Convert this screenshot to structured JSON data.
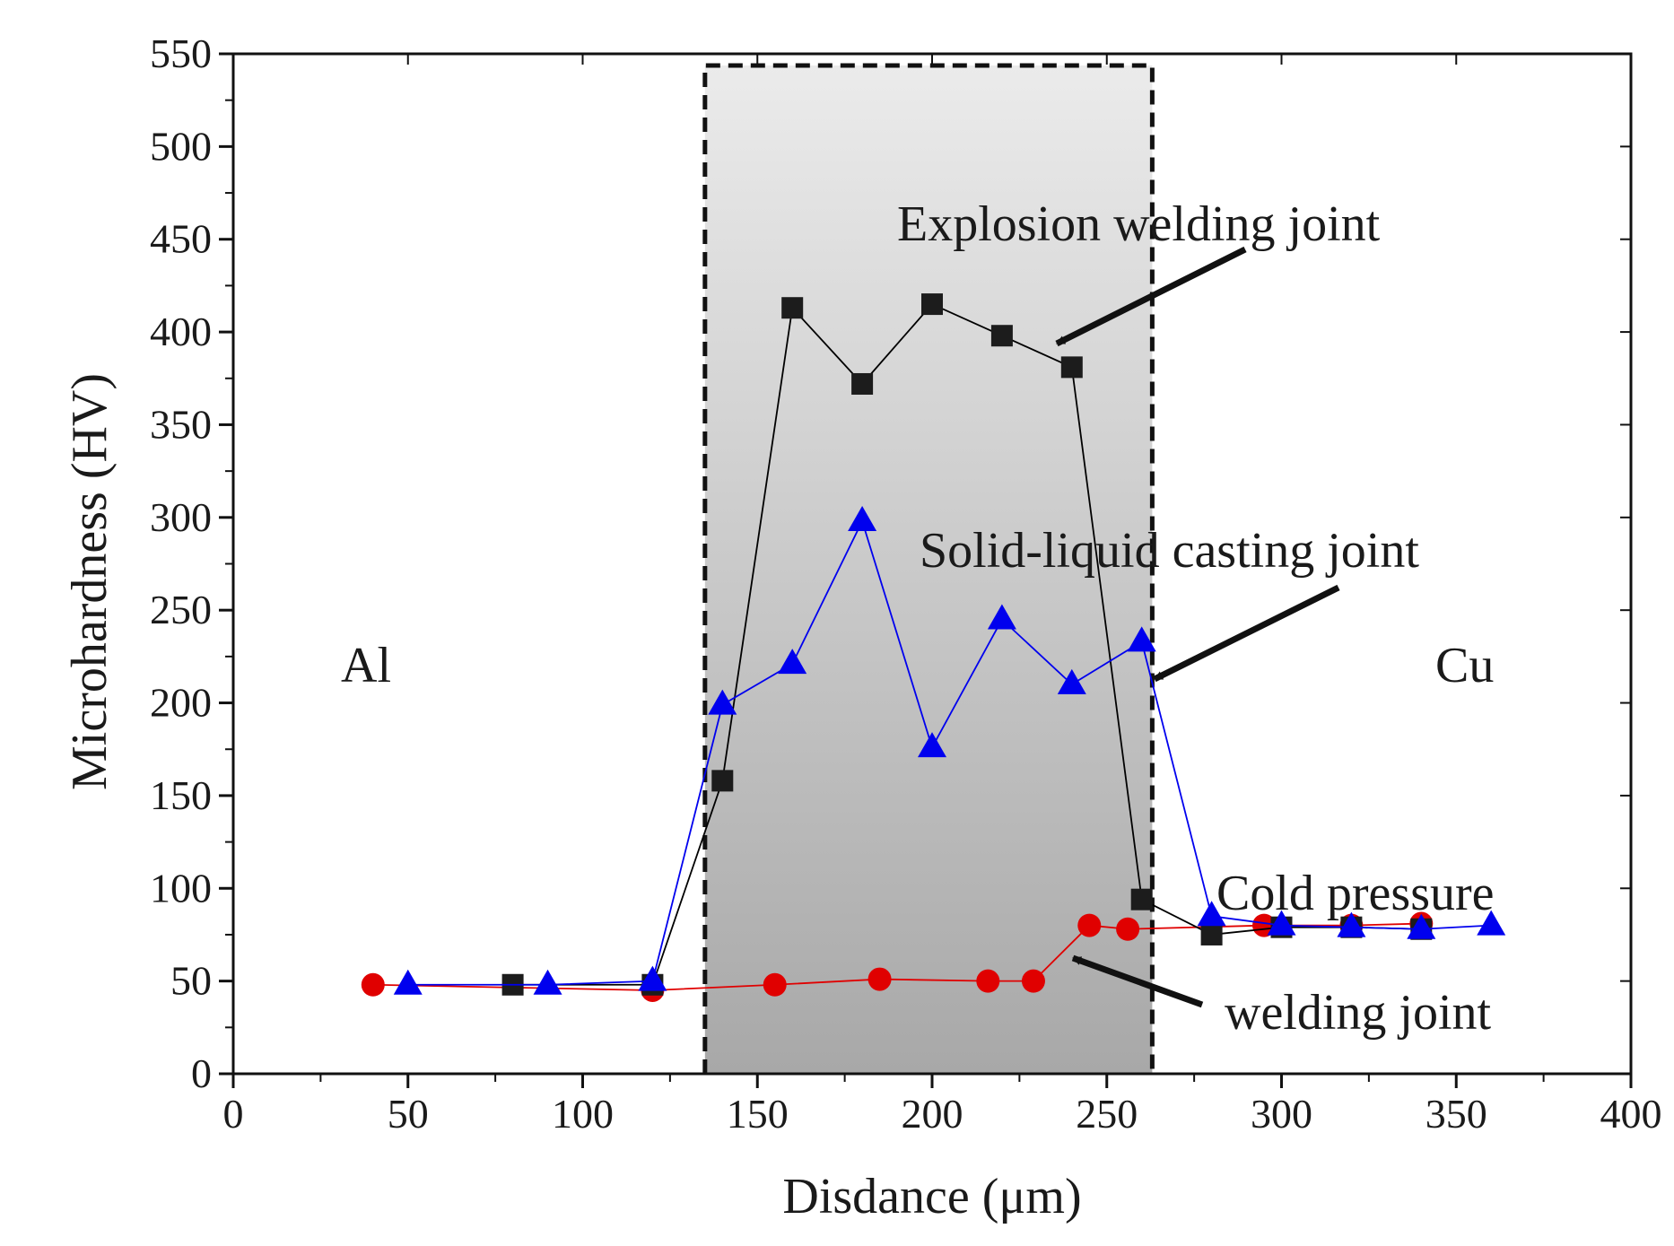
{
  "chart_data": {
    "type": "line",
    "title": "",
    "xlabel": "Disdance (μm)",
    "ylabel": "Microhardness (HV)",
    "xlim": [
      0,
      400
    ],
    "ylim": [
      0,
      550
    ],
    "xticks": [
      0,
      50,
      100,
      150,
      200,
      250,
      300,
      350,
      400
    ],
    "yticks": [
      0,
      50,
      100,
      150,
      200,
      250,
      300,
      350,
      400,
      450,
      500,
      550
    ],
    "grid": false,
    "shaded_region": {
      "x_start": 135,
      "x_end": 263,
      "fill": "gradient light-to-dark grey",
      "border": "dashed black"
    },
    "series": [
      {
        "name": "Explosion welding joint",
        "color": "#000000",
        "marker": "square",
        "points": [
          {
            "x": 80,
            "y": 48
          },
          {
            "x": 120,
            "y": 48
          },
          {
            "x": 140,
            "y": 158
          },
          {
            "x": 160,
            "y": 413
          },
          {
            "x": 180,
            "y": 372
          },
          {
            "x": 200,
            "y": 415
          },
          {
            "x": 220,
            "y": 398
          },
          {
            "x": 240,
            "y": 381
          },
          {
            "x": 260,
            "y": 94
          },
          {
            "x": 280,
            "y": 75
          },
          {
            "x": 300,
            "y": 79
          },
          {
            "x": 320,
            "y": 79
          },
          {
            "x": 340,
            "y": 78
          }
        ]
      },
      {
        "name": "Solid-liquid casting joint",
        "color": "#0000ee",
        "marker": "triangle",
        "points": [
          {
            "x": 50,
            "y": 48
          },
          {
            "x": 90,
            "y": 48
          },
          {
            "x": 120,
            "y": 50
          },
          {
            "x": 140,
            "y": 199
          },
          {
            "x": 160,
            "y": 221
          },
          {
            "x": 180,
            "y": 298
          },
          {
            "x": 200,
            "y": 176
          },
          {
            "x": 220,
            "y": 245
          },
          {
            "x": 240,
            "y": 210
          },
          {
            "x": 260,
            "y": 233
          },
          {
            "x": 280,
            "y": 85
          },
          {
            "x": 300,
            "y": 80
          },
          {
            "x": 320,
            "y": 79
          },
          {
            "x": 340,
            "y": 78
          },
          {
            "x": 360,
            "y": 80
          }
        ]
      },
      {
        "name": "Cold pressure welding joint",
        "color": "#e00000",
        "marker": "circle",
        "points": [
          {
            "x": 40,
            "y": 48
          },
          {
            "x": 120,
            "y": 45
          },
          {
            "x": 155,
            "y": 48
          },
          {
            "x": 185,
            "y": 51
          },
          {
            "x": 216,
            "y": 50
          },
          {
            "x": 229,
            "y": 50
          },
          {
            "x": 245,
            "y": 80
          },
          {
            "x": 256,
            "y": 78
          },
          {
            "x": 295,
            "y": 80
          },
          {
            "x": 320,
            "y": 80
          },
          {
            "x": 340,
            "y": 81
          }
        ]
      }
    ],
    "annotations": [
      {
        "id": "al",
        "text": "Al"
      },
      {
        "id": "cu",
        "text": "Cu"
      },
      {
        "id": "explosion",
        "text": "Explosion welding joint"
      },
      {
        "id": "solid",
        "text": "Solid-liquid casting joint"
      },
      {
        "id": "cold1",
        "text": "Cold pressure"
      },
      {
        "id": "cold2",
        "text": "welding joint"
      }
    ]
  }
}
